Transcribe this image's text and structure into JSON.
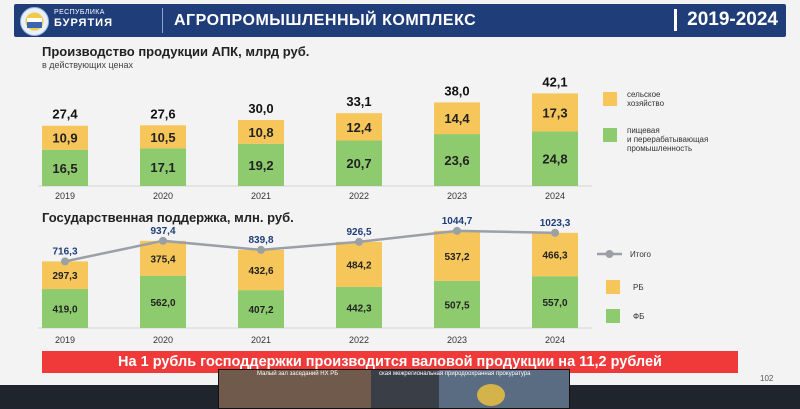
{
  "header": {
    "region_line1": "РЕСПУБЛИКА",
    "region_line2": "БУРЯТИЯ",
    "title": "АГРОПРОМЫШЛЕННЫЙ КОМПЛЕКС",
    "years": "2019-2024"
  },
  "colors": {
    "header_blue": "#1f3d79",
    "yellow": "#f7c65a",
    "green": "#8ecb6e",
    "line": "#9aa0a6",
    "banner_red": "#f03a3a"
  },
  "chart_data": [
    {
      "type": "bar",
      "stacked": true,
      "title": "Производство продукции АПК, млрд руб.",
      "subtitle": "в действующих ценах",
      "categories": [
        "2019",
        "2020",
        "2021",
        "2022",
        "2023",
        "2024"
      ],
      "series": [
        {
          "name": "пищевая и перерабатывающая промышленность",
          "color": "#8ecb6e",
          "values": [
            16.5,
            17.1,
            19.2,
            20.7,
            23.6,
            24.8
          ],
          "labels": [
            "16,5",
            "17,1",
            "19,2",
            "20,7",
            "23,6",
            "24,8"
          ]
        },
        {
          "name": "сельское хозяйство",
          "color": "#f7c65a",
          "values": [
            10.9,
            10.5,
            10.8,
            12.4,
            14.4,
            17.3
          ],
          "labels": [
            "10,9",
            "10,5",
            "10,8",
            "12,4",
            "14,4",
            "17,3"
          ]
        }
      ],
      "totals": [
        "27,4",
        "27,6",
        "30,0",
        "33,1",
        "38,0",
        "42,1"
      ],
      "legend": [
        {
          "name": "сельское хозяйство",
          "color": "#f7c65a"
        },
        {
          "name": "пищевая и перерабатывающая промышленность",
          "color": "#8ecb6e"
        }
      ],
      "legend_position": "right",
      "ylim": [
        0,
        45
      ]
    },
    {
      "type": "bar",
      "stacked": true,
      "title": "Государственная поддержка, млн. руб.",
      "categories": [
        "2019",
        "2020",
        "2021",
        "2022",
        "2023",
        "2024"
      ],
      "series": [
        {
          "name": "ФБ",
          "color": "#8ecb6e",
          "values": [
            419.0,
            562.0,
            407.2,
            442.3,
            507.5,
            557.0
          ],
          "labels": [
            "419,0",
            "562,0",
            "407,2",
            "442,3",
            "507,5",
            "557,0"
          ]
        },
        {
          "name": "РБ",
          "color": "#f7c65a",
          "values": [
            297.3,
            375.4,
            432.6,
            484.2,
            537.2,
            466.3
          ],
          "labels": [
            "297,3",
            "375,4",
            "432,6",
            "484,2",
            "537,2",
            "466,3"
          ]
        }
      ],
      "line": {
        "name": "Итого",
        "color": "#9aa0a6",
        "values": [
          716.3,
          937.4,
          839.8,
          926.5,
          1044.7,
          1023.3
        ],
        "labels": [
          "716,3",
          "937,4",
          "839,8",
          "926,5",
          "1044,7",
          "1023,3"
        ]
      },
      "legend": [
        {
          "name": "Итого",
          "color": "#9aa0a6",
          "kind": "line"
        },
        {
          "name": "РБ",
          "color": "#f7c65a",
          "kind": "box"
        },
        {
          "name": "ФБ",
          "color": "#8ecb6e",
          "kind": "box"
        }
      ],
      "legend_position": "right",
      "ylim": [
        0,
        1100
      ]
    }
  ],
  "banner": "На 1 рубль господдержки производится валовой продукции на 11,2 рублей",
  "page_number": "102",
  "video": {
    "caption_left": "Малый зал заседаний НХ РБ",
    "caption_right": "ская межрегиональная природоохранная прокуратура"
  }
}
